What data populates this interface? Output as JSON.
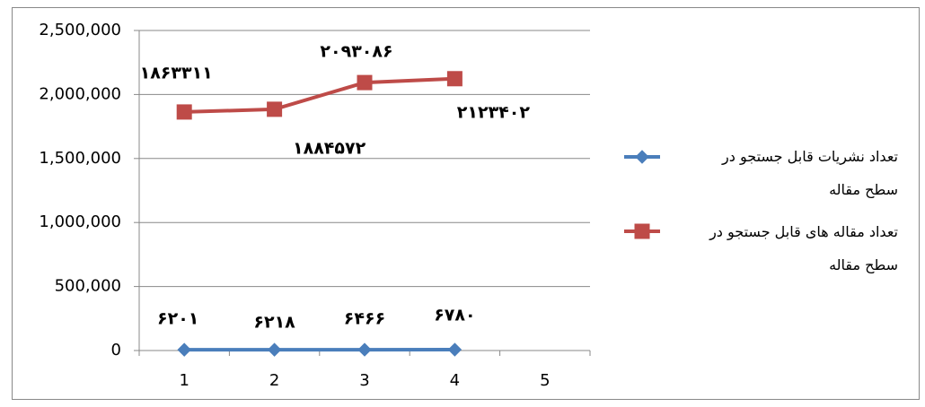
{
  "chart_data": {
    "type": "line",
    "categories": [
      "1",
      "2",
      "3",
      "4",
      "5"
    ],
    "series": [
      {
        "name": "تعداد نشریات قابل جستجو در سطح مقاله",
        "color": "#4a7ebb",
        "marker": "diamond",
        "values": [
          6201,
          6218,
          6466,
          6780,
          null
        ],
        "value_labels": [
          "۶۲۰۱",
          "۶۲۱۸",
          "۶۴۶۶",
          "۶۷۸۰",
          null
        ]
      },
      {
        "name": "تعداد مقاله های قابل جستجو در سطح مقاله",
        "color": "#be4b48",
        "marker": "square",
        "values": [
          1863311,
          1884572,
          2093086,
          2123402,
          null
        ],
        "value_labels": [
          "۱۸۶۳۳۱۱",
          "۱۸۸۴۵۷۲",
          "۲۰۹۳۰۸۶",
          "۲۱۲۳۴۰۲",
          null
        ]
      }
    ],
    "ylim": [
      0,
      2500000
    ],
    "yticks": [
      0,
      {
        "value": 500000,
        "label": "500,000"
      },
      {
        "value": 1000000,
        "label": "1,000,000"
      },
      {
        "value": 1500000,
        "label": "1,500,000"
      },
      {
        "value": 2000000,
        "label": "2,000,000"
      },
      {
        "value": 2500000,
        "label": "2,500,000"
      }
    ],
    "grid": true,
    "legend": "right"
  }
}
